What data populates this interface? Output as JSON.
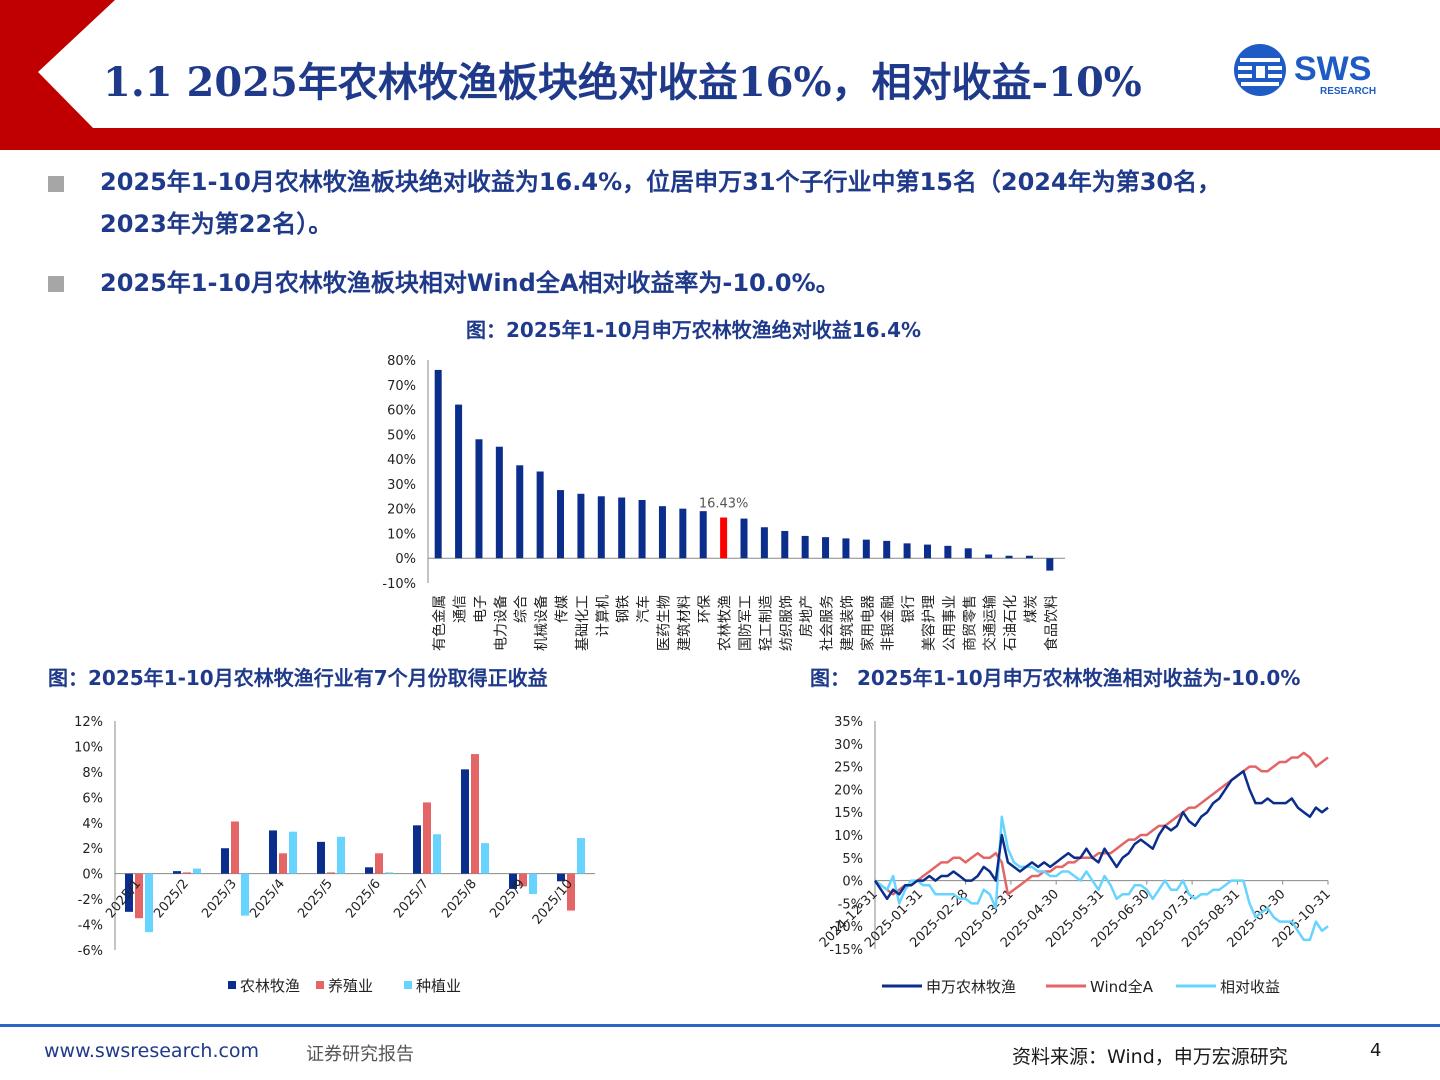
{
  "header": {
    "title": "1.1 2025年农林牧渔板块绝对收益16%，相对收益-10%",
    "logo_text": "SWS",
    "logo_sub": "RESEARCH",
    "colors": {
      "red": "#c00000",
      "navy": "#1f3a8a",
      "blue": "#2b67c5"
    }
  },
  "bullets": [
    {
      "line1": "2025年1-10月农林牧渔板块绝对收益为16.4%，位居申万31个子行业中第15名（2024年为第30名，",
      "line2": "2023年为第22名）。"
    },
    {
      "line1": "2025年1-10月农林牧渔板块相对Wind全A相对收益率为-10.0%。"
    }
  ],
  "chart_titles": {
    "top": "图：2025年1-10月申万农林牧渔绝对收益16.4%",
    "left": "图：2025年1-10月农林牧渔行业有7个月份取得正收益",
    "right": "图： 2025年1-10月申万农林牧渔相对收益为-10.0%"
  },
  "chart_data": [
    {
      "type": "bar",
      "title": "图：2025年1-10月申万农林牧渔绝对收益16.4%",
      "categories": [
        "有色金属",
        "通信",
        "电子",
        "电力设备",
        "综合",
        "机械设备",
        "传媒",
        "基础化工",
        "计算机",
        "钢铁",
        "汽车",
        "医药生物",
        "建筑材料",
        "环保",
        "农林牧渔",
        "国防军工",
        "轻工制造",
        "纺织服饰",
        "房地产",
        "社会服务",
        "建筑装饰",
        "家用电器",
        "非银金融",
        "银行",
        "美容护理",
        "公用事业",
        "商贸零售",
        "交通运输",
        "石油石化",
        "煤炭",
        "食品饮料"
      ],
      "values": [
        76,
        62,
        48,
        45,
        37.5,
        35,
        27.5,
        26,
        25,
        24.5,
        23.5,
        21,
        20,
        19,
        16.43,
        16,
        12.5,
        11,
        9,
        8.5,
        8,
        7.5,
        7,
        6,
        5.5,
        5,
        4,
        1.5,
        1,
        1,
        -5
      ],
      "highlight_index": 14,
      "highlight_label": "16.43%",
      "yticks": [
        "80%",
        "70%",
        "60%",
        "50%",
        "40%",
        "30%",
        "20%",
        "10%",
        "0%",
        "-10%"
      ],
      "ylim": [
        -10,
        80
      ],
      "colors": {
        "bar": "#0b2d8c",
        "highlight": "#ff0000"
      }
    },
    {
      "type": "bar",
      "title": "图：2025年1-10月农林牧渔行业有7个月份取得正收益",
      "categories": [
        "2025/1",
        "2025/2",
        "2025/3",
        "2025/4",
        "2025/5",
        "2025/6",
        "2025/7",
        "2025/8",
        "2025/9",
        "2025/10"
      ],
      "series": [
        {
          "name": "农林牧渔",
          "color": "#0b2d8c",
          "values": [
            -3.0,
            0.2,
            2.0,
            3.4,
            2.5,
            0.5,
            3.8,
            8.2,
            -1.2,
            -0.6
          ]
        },
        {
          "name": "养殖业",
          "color": "#e46565",
          "values": [
            -3.5,
            0.1,
            4.1,
            1.6,
            0.1,
            1.6,
            5.6,
            9.4,
            -1.0,
            -2.9
          ]
        },
        {
          "name": "种植业",
          "color": "#66d4ff",
          "values": [
            -4.6,
            0.4,
            -3.3,
            3.3,
            2.9,
            0.1,
            3.1,
            2.4,
            -1.6,
            2.8
          ]
        }
      ],
      "yticks": [
        "12%",
        "10%",
        "8%",
        "6%",
        "4%",
        "2%",
        "0%",
        "-2%",
        "-4%",
        "-6%"
      ],
      "ylim": [
        -6,
        12
      ]
    },
    {
      "type": "line",
      "title": "图： 2025年1-10月申万农林牧渔相对收益为-10.0%",
      "x_ticks": [
        "2024-12-31",
        "2025-01-31",
        "2025-02-28",
        "2025-03-31",
        "2025-04-30",
        "2025-05-31",
        "2025-06-30",
        "2025-07-31",
        "2025-08-31",
        "2025-09-30",
        "2025-10-31"
      ],
      "yticks": [
        "35%",
        "30%",
        "25%",
        "20%",
        "15%",
        "10%",
        "5%",
        "0%",
        "-5%",
        "-10%",
        "-15%"
      ],
      "ylim": [
        -15,
        35
      ],
      "series": [
        {
          "name": "申万农林牧渔",
          "color": "#0b2d8c",
          "values": [
            0,
            -2,
            -4,
            -2,
            -3,
            -1,
            -1,
            0,
            0,
            1,
            0,
            1,
            1,
            2,
            1,
            0,
            0,
            1,
            3,
            2,
            0,
            10,
            4,
            3,
            2,
            3,
            4,
            3,
            4,
            3,
            4,
            5,
            6,
            5,
            5,
            7,
            5,
            4,
            7,
            5,
            3,
            5,
            6,
            8,
            9,
            8,
            7,
            10,
            12,
            11,
            12,
            15,
            13,
            12,
            14,
            15,
            17,
            18,
            20,
            22,
            23,
            24,
            20,
            17,
            17,
            18,
            17,
            17,
            17,
            18,
            16,
            15,
            14,
            16,
            15,
            16
          ]
        },
        {
          "name": "Wind全A",
          "color": "#e46565",
          "values": [
            0,
            -1,
            -2,
            -3,
            -2,
            -1,
            -1,
            0,
            1,
            2,
            3,
            4,
            4,
            5,
            5,
            4,
            5,
            6,
            5,
            5,
            6,
            4,
            -3,
            -2,
            -1,
            0,
            1,
            1,
            2,
            2,
            3,
            3,
            4,
            4,
            5,
            5,
            5,
            6,
            6,
            6,
            7,
            8,
            9,
            9,
            10,
            10,
            11,
            12,
            12,
            13,
            14,
            15,
            16,
            16,
            17,
            18,
            19,
            20,
            21,
            22,
            23,
            24,
            25,
            25,
            24,
            24,
            25,
            26,
            26,
            27,
            27,
            28,
            27,
            25,
            26,
            27
          ]
        },
        {
          "name": "相对收益",
          "color": "#66d4ff",
          "values": [
            0,
            -1,
            -2,
            1,
            -5,
            -2,
            0,
            0,
            -1,
            -1,
            -3,
            -3,
            -3,
            -3,
            -4,
            -4,
            -5,
            -5,
            -2,
            -3,
            -6,
            14,
            7,
            4,
            3,
            3,
            3,
            2,
            2,
            1,
            1,
            2,
            2,
            1,
            0,
            2,
            0,
            -2,
            1,
            -1,
            -4,
            -3,
            -3,
            -1,
            -1,
            -2,
            -4,
            -2,
            0,
            -2,
            -2,
            0,
            -3,
            -4,
            -3,
            -3,
            -2,
            -2,
            -1,
            0,
            0,
            0,
            -5,
            -8,
            -7,
            -6,
            -8,
            -9,
            -9,
            -9,
            -11,
            -13,
            -13,
            -9,
            -11,
            -10
          ]
        }
      ]
    }
  ],
  "footer": {
    "url": "www.swsresearch.com",
    "type": "证券研究报告",
    "source": "资料来源：Wind，申万宏源研究",
    "page": "4"
  }
}
